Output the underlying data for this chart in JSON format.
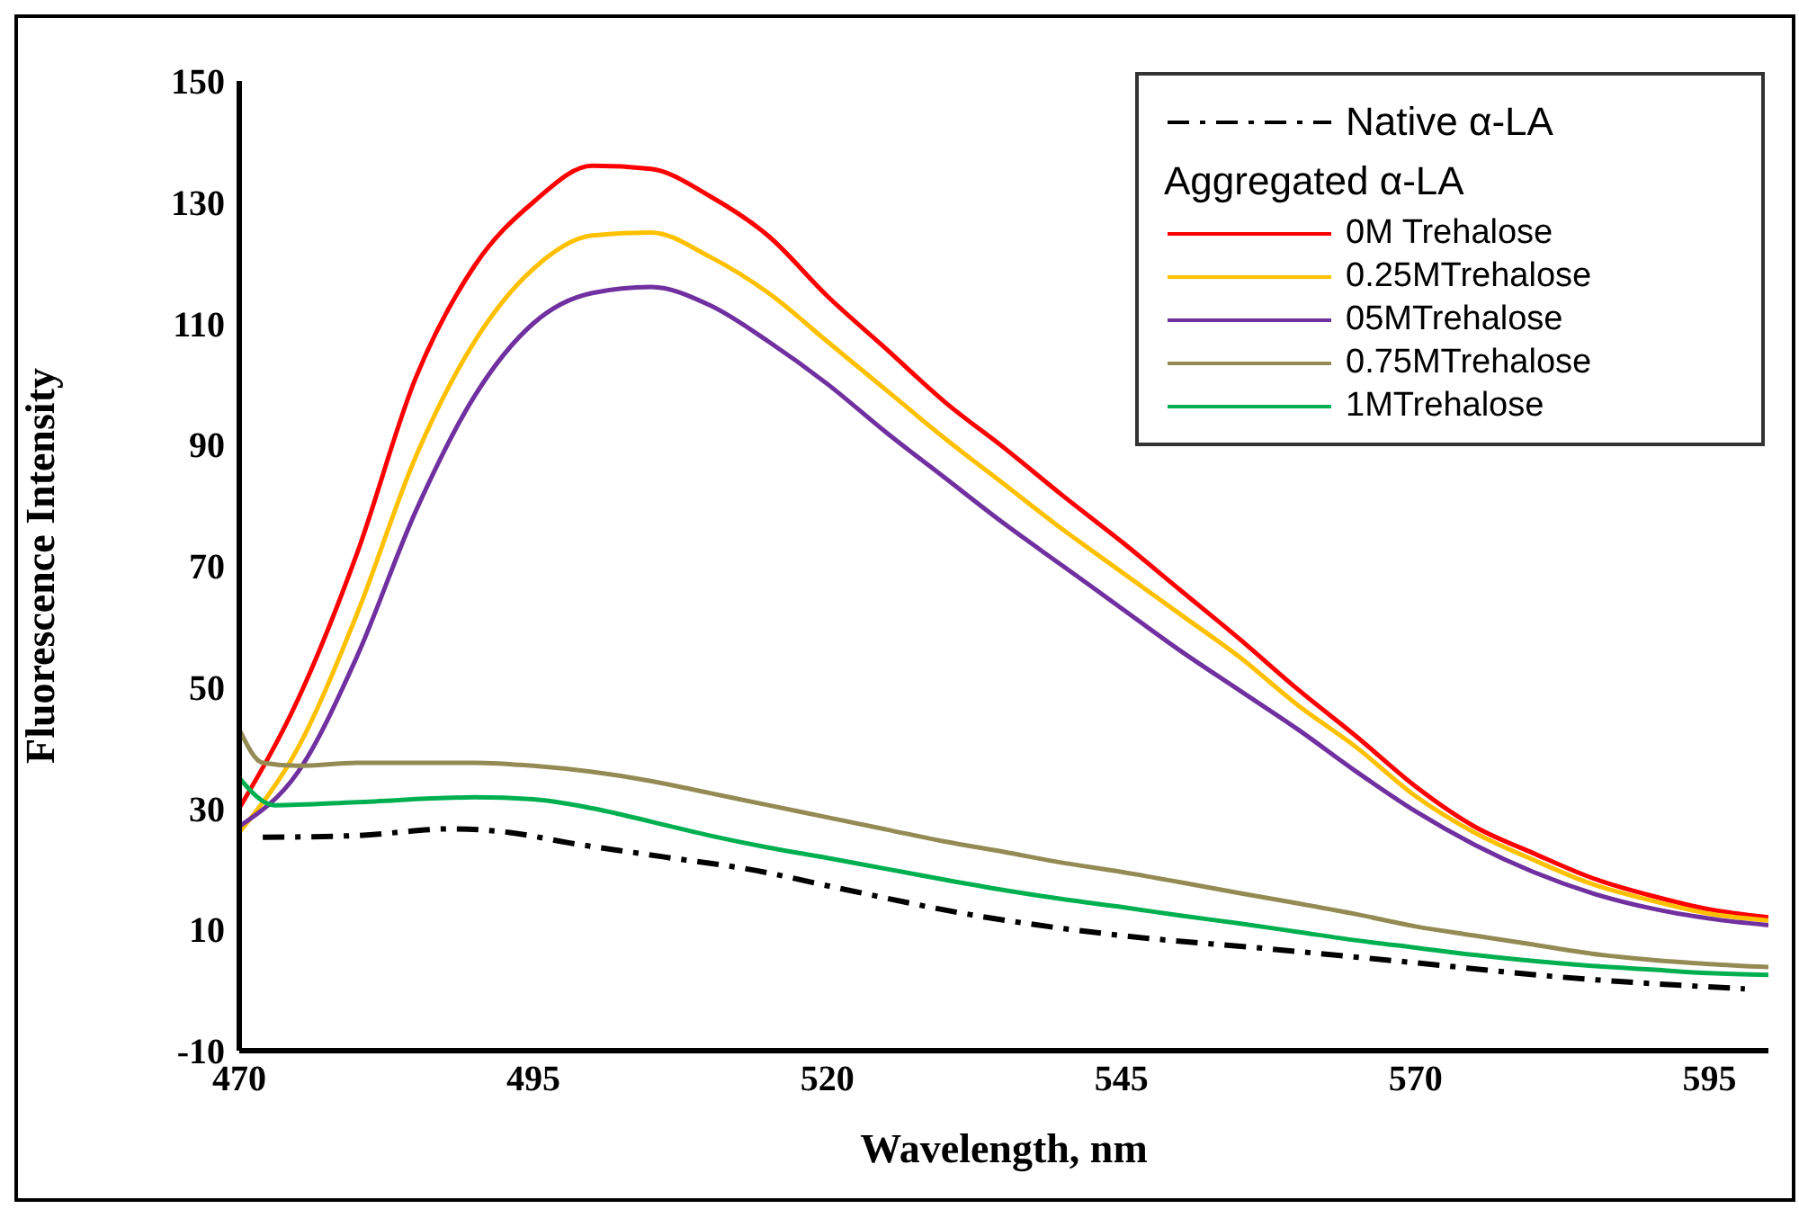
{
  "chart_data": {
    "type": "line",
    "xlabel": "Wavelength, nm",
    "ylabel": "Fluorescence Intensity",
    "legend_title": "Aggregated α-LA",
    "xlim": [
      470,
      600
    ],
    "ylim": [
      -10,
      150
    ],
    "xticks": [
      470,
      495,
      520,
      545,
      570,
      595
    ],
    "yticks": [
      -10,
      10,
      30,
      50,
      70,
      90,
      110,
      130,
      150
    ],
    "grid": false,
    "legend": "top right",
    "marker": "none",
    "series": [
      {
        "name": "Native α-LA",
        "color": "#000000",
        "line_style": "dashed",
        "x": [
          472,
          480,
          488,
          493,
          498,
          506,
          514,
          521,
          532,
          545,
          557,
          570,
          582,
          598
        ],
        "values": [
          25.2,
          25.5,
          26.6,
          26,
          24.3,
          22,
          19.7,
          16.8,
          12.5,
          9,
          6.9,
          4.5,
          2.2,
          0.2
        ]
      },
      {
        "name": "0M Trehalose",
        "color": "#ff0000",
        "x": [
          470,
          475,
          480,
          485,
          490,
          495,
          500,
          505,
          510,
          515,
          520,
          525,
          530,
          535,
          540,
          545,
          550,
          555,
          560,
          565,
          570,
          575,
          580,
          585,
          590,
          595,
          600
        ],
        "values": [
          30,
          48,
          72,
          101,
          119.5,
          130,
          136,
          135.5,
          131,
          124.4,
          114.5,
          105.8,
          97,
          89.5,
          81.6,
          74,
          66,
          58,
          49.6,
          41.8,
          33.6,
          27,
          22.6,
          18.5,
          15.6,
          13.3,
          12
        ]
      },
      {
        "name": "0.25MTrehalose",
        "color": "#ffc000",
        "x": [
          470,
          475,
          480,
          485,
          490,
          495,
          500,
          505,
          510,
          515,
          520,
          525,
          530,
          535,
          540,
          545,
          550,
          555,
          560,
          565,
          570,
          575,
          580,
          585,
          590,
          595,
          600
        ],
        "values": [
          26,
          40,
          62,
          88,
          107,
          119,
          124.5,
          125,
          121,
          115,
          107,
          99,
          91,
          83.5,
          76,
          69,
          62,
          55,
          47,
          40,
          32,
          26,
          21.5,
          17.5,
          14.8,
          12.6,
          11.5
        ]
      },
      {
        "name": "05MTrehalose",
        "color": "#7030a0",
        "x": [
          470,
          475,
          480,
          485,
          490,
          495,
          500,
          505,
          510,
          515,
          520,
          525,
          530,
          535,
          540,
          545,
          550,
          555,
          560,
          565,
          570,
          575,
          580,
          585,
          590,
          595,
          600
        ],
        "values": [
          27,
          36,
          55,
          79,
          98,
          110,
          115,
          116,
          113,
          107,
          100,
          92,
          84.5,
          77,
          70,
          63,
          56,
          49.5,
          43,
          36,
          29.5,
          24,
          19.5,
          16,
          13.5,
          11.8,
          10.7
        ]
      },
      {
        "name": "0.75MTrehalose",
        "color": "#948a54",
        "x": [
          470,
          472,
          475,
          480,
          490,
          495,
          500,
          505,
          510,
          515,
          520,
          525,
          530,
          535,
          540,
          545,
          550,
          555,
          560,
          565,
          570,
          575,
          580,
          585,
          590,
          595,
          600
        ],
        "values": [
          43,
          37.5,
          37,
          37.5,
          37.5,
          37,
          36,
          34.5,
          32.5,
          30.5,
          28.5,
          26.5,
          24.5,
          22.8,
          21,
          19.5,
          17.8,
          16,
          14.3,
          12.5,
          10.5,
          9,
          7.5,
          6,
          5,
          4.3,
          3.8
        ]
      },
      {
        "name": "1MTrehalose",
        "color": "#00b050",
        "x": [
          470,
          473,
          480,
          490,
          495,
          500,
          505,
          510,
          515,
          520,
          525,
          530,
          535,
          540,
          545,
          550,
          555,
          560,
          565,
          570,
          575,
          580,
          585,
          590,
          595,
          600
        ],
        "values": [
          35,
          30.5,
          31,
          31.8,
          31.5,
          30,
          27.8,
          25.5,
          23.5,
          21.8,
          20,
          18.2,
          16.5,
          15,
          13.7,
          12.3,
          11,
          9.6,
          8.2,
          7,
          5.8,
          4.8,
          4,
          3.4,
          2.8,
          2.5
        ]
      }
    ]
  }
}
